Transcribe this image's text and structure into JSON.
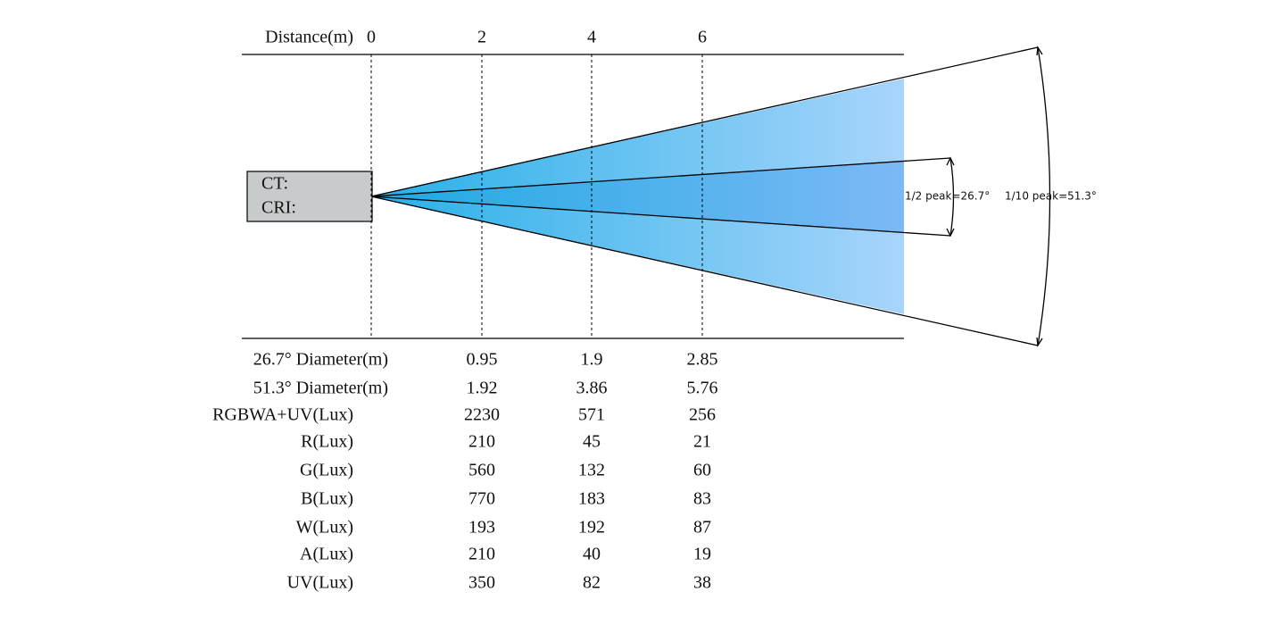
{
  "header": {
    "label": "Distance(m)",
    "distances": [
      "0",
      "2",
      "4",
      "6"
    ]
  },
  "fixture": {
    "ct": "CT:",
    "cri": "CRI:"
  },
  "beam": {
    "half_peak": "1/2 peak=26.7°",
    "tenth_peak": "1/10 peak=51.3°"
  },
  "table": {
    "rows": [
      [
        "26.7° Diameter(m)",
        "0.95",
        "1.9",
        "2.85"
      ],
      [
        "51.3° Diameter(m)",
        "1.92",
        "3.86",
        "5.76"
      ],
      [
        "RGBWA+UV(Lux)",
        "2230",
        "571",
        "256"
      ],
      [
        "R(Lux)",
        "210",
        "45",
        "21"
      ],
      [
        "G(Lux)",
        "560",
        "132",
        "60"
      ],
      [
        "B(Lux)",
        "770",
        "183",
        "83"
      ],
      [
        "W(Lux)",
        "193",
        "192",
        "87"
      ],
      [
        "A(Lux)",
        "210",
        "40",
        "19"
      ],
      [
        "UV(Lux)",
        "350",
        "82",
        "38"
      ]
    ]
  }
}
